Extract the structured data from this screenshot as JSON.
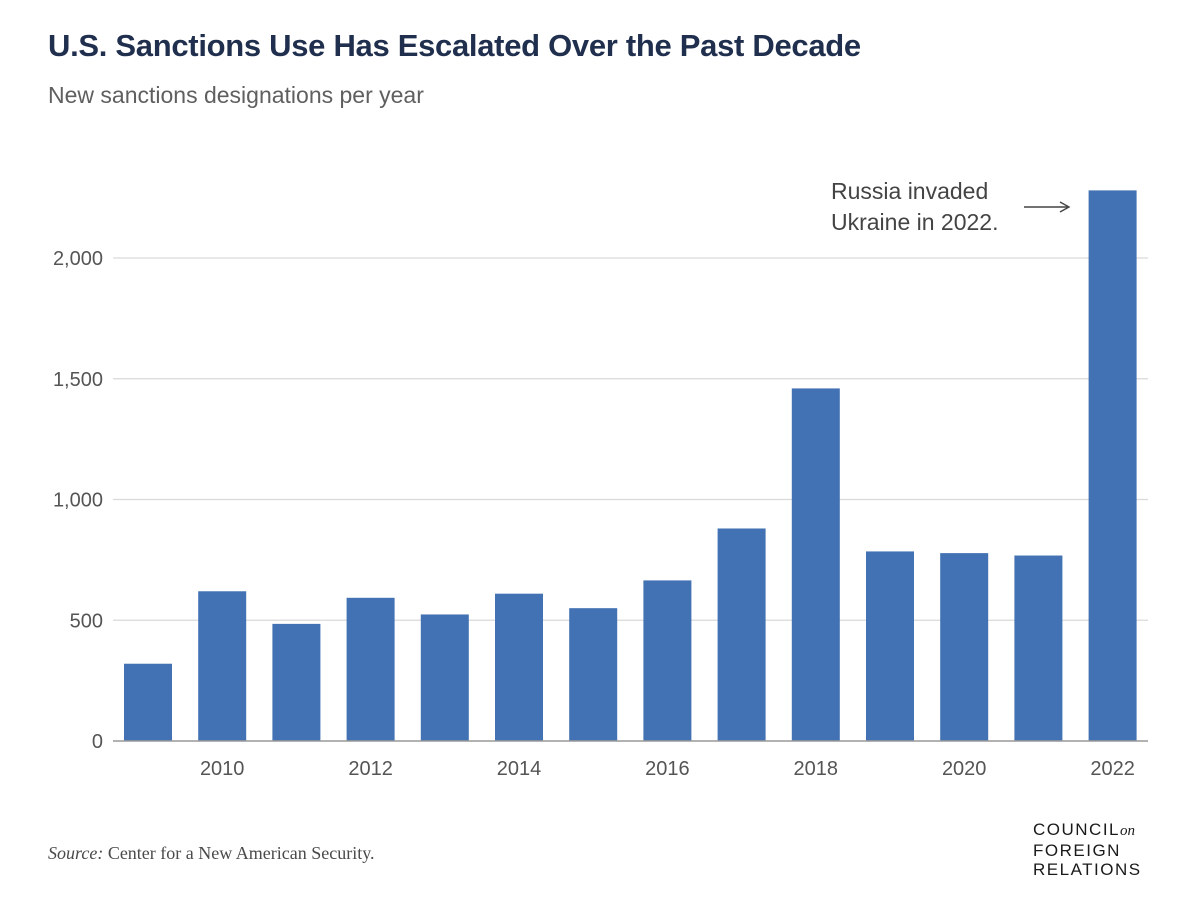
{
  "title": "U.S. Sanctions Use Has Escalated Over the Past Decade",
  "subtitle": "New sanctions designations per year",
  "source": {
    "label": "Source:",
    "text": " Center for a New American Security."
  },
  "logo": {
    "line1": "COUNCIL",
    "on": "on",
    "line2": "FOREIGN",
    "line3": "RELATIONS"
  },
  "colors": {
    "bar": "#4272b3",
    "grid": "#d9d9d9",
    "axis": "#999999"
  },
  "chart_data": {
    "type": "bar",
    "title": "U.S. Sanctions Use Has Escalated Over the Past Decade",
    "subtitle": "New sanctions designations per year",
    "xlabel": "",
    "ylabel": "",
    "categories": [
      "2009",
      "2010",
      "2011",
      "2012",
      "2013",
      "2014",
      "2015",
      "2016",
      "2017",
      "2018",
      "2019",
      "2020",
      "2021",
      "2022"
    ],
    "values": [
      320,
      620,
      485,
      593,
      524,
      610,
      550,
      665,
      880,
      1460,
      785,
      778,
      768,
      2280
    ],
    "x_tick_labels": [
      "",
      "2010",
      "",
      "2012",
      "",
      "2014",
      "",
      "2016",
      "",
      "2018",
      "",
      "2020",
      "",
      "2022"
    ],
    "y_ticks": [
      0,
      500,
      1000,
      1500,
      2000
    ],
    "y_tick_labels": [
      "0",
      "500",
      "1,000",
      "1,500",
      "2,000"
    ],
    "ylim": [
      0,
      2300
    ],
    "grid": true,
    "annotation": {
      "lines": [
        "Russia invaded",
        "Ukraine in 2022."
      ],
      "target": "2022"
    }
  }
}
